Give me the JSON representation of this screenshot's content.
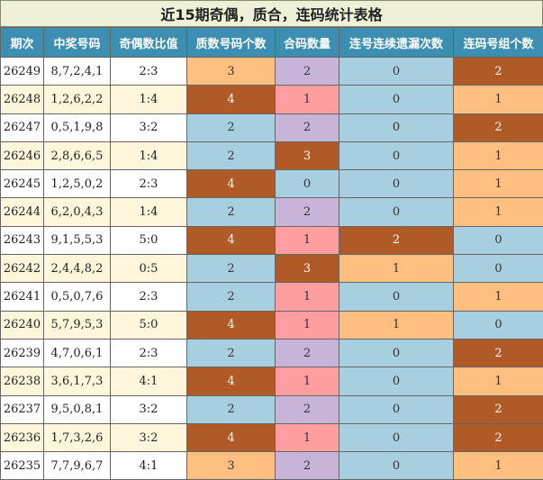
{
  "title": "近15期奇偶，质合，连码统计表格",
  "headers": [
    "期次",
    "中奖号码",
    "奇偶数比值",
    "质数号码个数",
    "合码数量",
    "连号连续遗漏次数",
    "连码号组个数"
  ],
  "colors": {
    "header_bg": "#3c8fb0",
    "orange": "#ffbf80",
    "brown": "#b05a28",
    "blue": "#a8cfe0",
    "purple": "#c8b4d8",
    "pink": "#ff9e9e",
    "cream": "#fff6dc"
  },
  "rows": [
    {
      "issue": "26249",
      "numbers": "8,7,2,4,1",
      "ratio": "2:3",
      "prime": "3",
      "prime_c": "ca",
      "comp": "2",
      "comp_c": "cd",
      "miss": "0",
      "miss_c": "cc",
      "groups": "2",
      "groups_c": "cb"
    },
    {
      "issue": "26248",
      "numbers": "1,2,6,2,2",
      "ratio": "1:4",
      "prime": "4",
      "prime_c": "cb",
      "comp": "1",
      "comp_c": "ce",
      "miss": "0",
      "miss_c": "cc",
      "groups": "1",
      "groups_c": "ca"
    },
    {
      "issue": "26247",
      "numbers": "0,5,1,9,8",
      "ratio": "3:2",
      "prime": "2",
      "prime_c": "cc",
      "comp": "2",
      "comp_c": "cd",
      "miss": "0",
      "miss_c": "cc",
      "groups": "2",
      "groups_c": "cb"
    },
    {
      "issue": "26246",
      "numbers": "2,8,6,6,5",
      "ratio": "1:4",
      "prime": "2",
      "prime_c": "cc",
      "comp": "3",
      "comp_c": "cb",
      "miss": "0",
      "miss_c": "cc",
      "groups": "1",
      "groups_c": "ca"
    },
    {
      "issue": "26245",
      "numbers": "1,2,5,0,2",
      "ratio": "2:3",
      "prime": "4",
      "prime_c": "cb",
      "comp": "0",
      "comp_c": "cc",
      "miss": "0",
      "miss_c": "cc",
      "groups": "1",
      "groups_c": "ca"
    },
    {
      "issue": "26244",
      "numbers": "6,2,0,4,3",
      "ratio": "1:4",
      "prime": "2",
      "prime_c": "cc",
      "comp": "2",
      "comp_c": "cd",
      "miss": "0",
      "miss_c": "cc",
      "groups": "1",
      "groups_c": "ca"
    },
    {
      "issue": "26243",
      "numbers": "9,1,5,5,3",
      "ratio": "5:0",
      "prime": "4",
      "prime_c": "cb",
      "comp": "1",
      "comp_c": "ce",
      "miss": "2",
      "miss_c": "cb",
      "groups": "0",
      "groups_c": "cc"
    },
    {
      "issue": "26242",
      "numbers": "2,4,4,8,2",
      "ratio": "0:5",
      "prime": "2",
      "prime_c": "cc",
      "comp": "3",
      "comp_c": "cb",
      "miss": "1",
      "miss_c": "ca",
      "groups": "0",
      "groups_c": "cc"
    },
    {
      "issue": "26241",
      "numbers": "0,5,0,7,6",
      "ratio": "2:3",
      "prime": "2",
      "prime_c": "cc",
      "comp": "1",
      "comp_c": "ce",
      "miss": "0",
      "miss_c": "cc",
      "groups": "1",
      "groups_c": "ca"
    },
    {
      "issue": "26240",
      "numbers": "5,7,9,5,3",
      "ratio": "5:0",
      "prime": "4",
      "prime_c": "cb",
      "comp": "1",
      "comp_c": "ce",
      "miss": "1",
      "miss_c": "ca",
      "groups": "0",
      "groups_c": "cc"
    },
    {
      "issue": "26239",
      "numbers": "4,7,0,6,1",
      "ratio": "2:3",
      "prime": "2",
      "prime_c": "cc",
      "comp": "2",
      "comp_c": "cd",
      "miss": "0",
      "miss_c": "cc",
      "groups": "2",
      "groups_c": "cb"
    },
    {
      "issue": "26238",
      "numbers": "3,6,1,7,3",
      "ratio": "4:1",
      "prime": "4",
      "prime_c": "cb",
      "comp": "1",
      "comp_c": "ce",
      "miss": "0",
      "miss_c": "cc",
      "groups": "1",
      "groups_c": "ca"
    },
    {
      "issue": "26237",
      "numbers": "9,5,0,8,1",
      "ratio": "3:2",
      "prime": "2",
      "prime_c": "cc",
      "comp": "2",
      "comp_c": "cd",
      "miss": "0",
      "miss_c": "cc",
      "groups": "2",
      "groups_c": "cb"
    },
    {
      "issue": "26236",
      "numbers": "1,7,3,2,6",
      "ratio": "3:2",
      "prime": "4",
      "prime_c": "cb",
      "comp": "1",
      "comp_c": "ce",
      "miss": "0",
      "miss_c": "cc",
      "groups": "2",
      "groups_c": "cb"
    },
    {
      "issue": "26235",
      "numbers": "7,7,9,6,7",
      "ratio": "4:1",
      "prime": "3",
      "prime_c": "ca",
      "comp": "2",
      "comp_c": "cd",
      "miss": "0",
      "miss_c": "cc",
      "groups": "1",
      "groups_c": "ca"
    }
  ]
}
